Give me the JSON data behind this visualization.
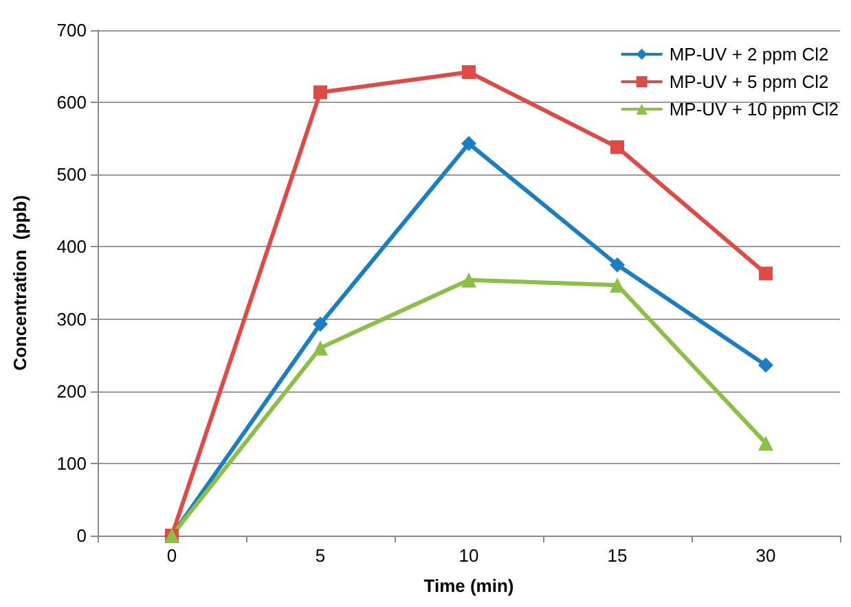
{
  "chart_data": {
    "type": "line",
    "xlabel": "Time (min)",
    "ylabel": "Concentration  (ppb)",
    "categories": [
      "0",
      "5",
      "10",
      "15",
      "30"
    ],
    "series": [
      {
        "name": "MP-UV + 2 ppm Cl2",
        "color": "#1a7ec4",
        "marker": "diamond",
        "values": [
          0,
          293,
          543,
          375,
          236
        ]
      },
      {
        "name": "MP-UV + 5 ppm Cl2",
        "color": "#e04a45",
        "marker": "square",
        "values": [
          0,
          614,
          642,
          538,
          363
        ]
      },
      {
        "name": "MP-UV + 10 ppm Cl2",
        "color": "#8cbf45",
        "marker": "triangle",
        "values": [
          0,
          260,
          354,
          347,
          128
        ]
      }
    ],
    "ylim": [
      0,
      700
    ],
    "yticks": [
      0,
      100,
      200,
      300,
      400,
      500,
      600,
      700
    ],
    "grid": "y",
    "legend": "top right",
    "line_style": "solid"
  }
}
